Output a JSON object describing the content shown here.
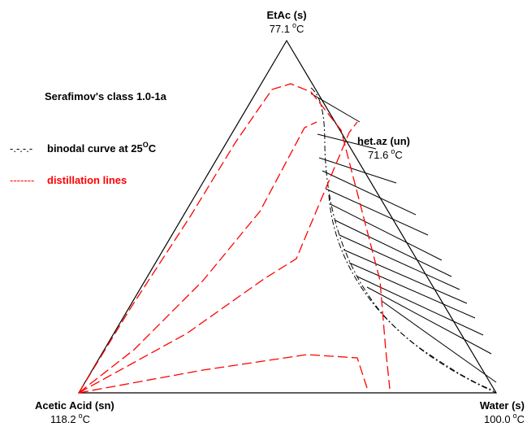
{
  "title": "Serafimov's class 1.0-1a",
  "vertices": {
    "top": {
      "name": "EtAc (s)",
      "temp_value": "77.1",
      "temp_unit": "C"
    },
    "left": {
      "name": "Acetic Acid (sn)",
      "temp_value": "118.2",
      "temp_unit": "C"
    },
    "right": {
      "name": "Water (s)",
      "temp_value": "100.0",
      "temp_unit": "C"
    }
  },
  "azeotrope": {
    "name": "het.az (un)",
    "temp_value": "71.6",
    "temp_unit": "C"
  },
  "legend": {
    "binodal": {
      "swatch": "-.-.-.-",
      "text": "binodal curve at 25",
      "sup": "O",
      "suffix": "C",
      "color": "#000000"
    },
    "distillation": {
      "swatch": "-------",
      "text": "distillation lines",
      "color": "#ff0000"
    }
  },
  "degree_symbol": "o",
  "colors": {
    "triangle": "#000000",
    "binodal": "#000000",
    "tielines": "#000000",
    "distillation": "#ff0000"
  }
}
